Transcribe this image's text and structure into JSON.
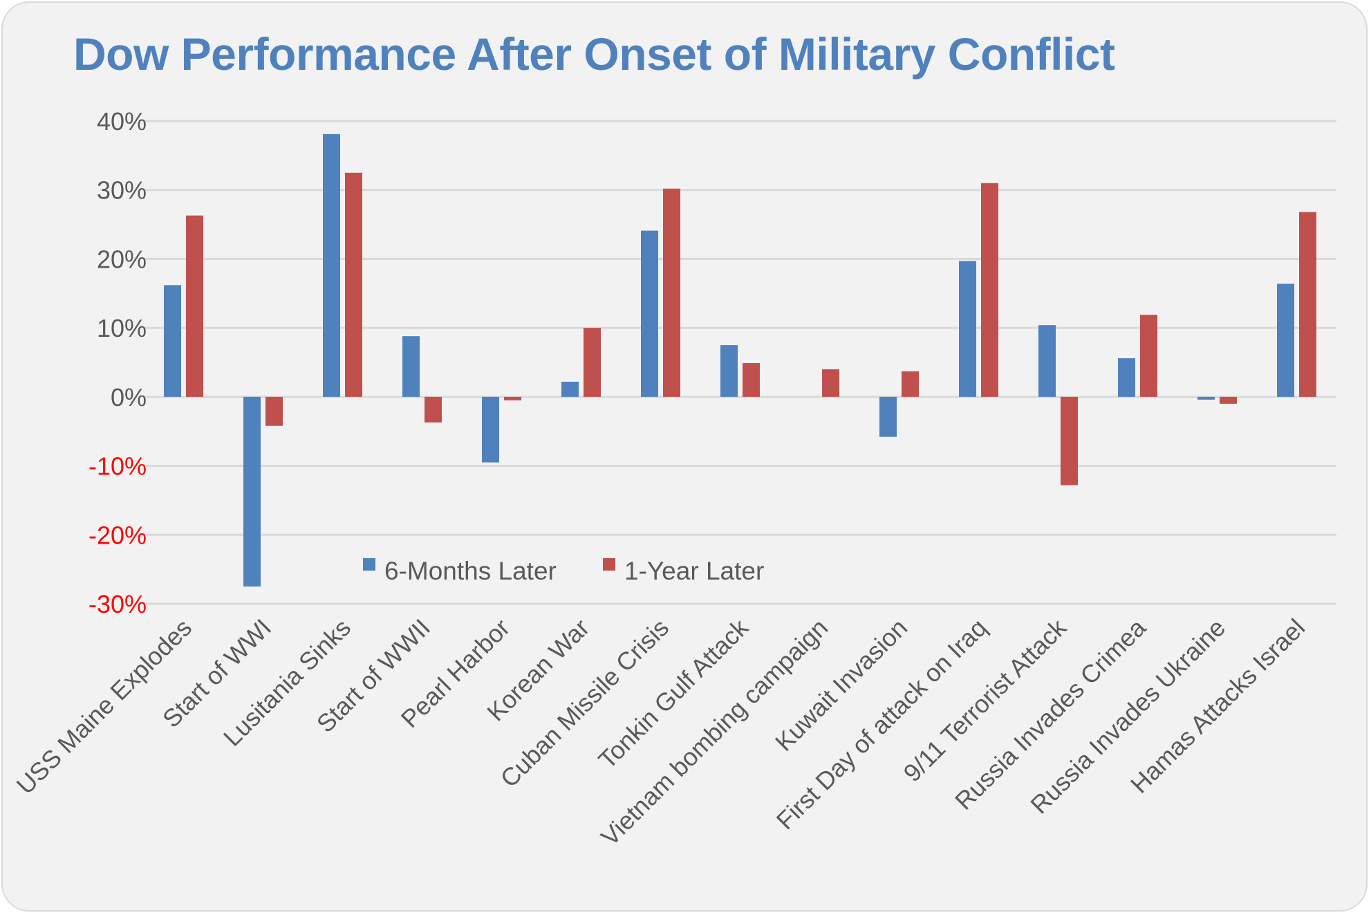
{
  "chart_data": {
    "type": "bar",
    "title": "Dow Performance After Onset of Military Conflict",
    "xlabel": "",
    "ylabel": "",
    "ylim": [
      -0.3,
      0.4
    ],
    "yticks": [
      0.4,
      0.3,
      0.2,
      0.1,
      0.0,
      -0.1,
      -0.2,
      -0.3
    ],
    "ytick_labels": [
      "40%",
      "30%",
      "20%",
      "10%",
      "0%",
      "-10%",
      "-20%",
      "-30%"
    ],
    "grid": true,
    "legend_position": "bottom-center-inside",
    "categories": [
      "USS Maine Explodes",
      "Start of WWI",
      "Lusitania Sinks",
      "Start of WWII",
      "Pearl Harbor",
      "Korean War",
      "Cuban Missile Crisis",
      "Tonkin Gulf Attack",
      "Vietnam bombing campaign",
      "Kuwait Invasion",
      "First Day of attack on Iraq",
      "9/11 Terrorist Attack",
      "Russia Invades Crimea",
      "Russia Invades Ukraine",
      "Hamas Attacks Israel"
    ],
    "series": [
      {
        "name": "6-Months Later",
        "color": "#4f81bd",
        "values": [
          0.162,
          -0.275,
          0.381,
          0.088,
          -0.095,
          0.022,
          0.241,
          0.075,
          0.0,
          -0.058,
          0.197,
          0.104,
          0.056,
          -0.004,
          0.164
        ]
      },
      {
        "name": "1-Year Later",
        "color": "#c0504d",
        "values": [
          0.263,
          -0.042,
          0.325,
          -0.037,
          -0.005,
          0.1,
          0.302,
          0.049,
          0.04,
          0.037,
          0.31,
          -0.128,
          0.119,
          -0.01,
          0.268
        ]
      }
    ],
    "negative_tick_color": "#ff0000",
    "positive_tick_color": "#595959"
  }
}
